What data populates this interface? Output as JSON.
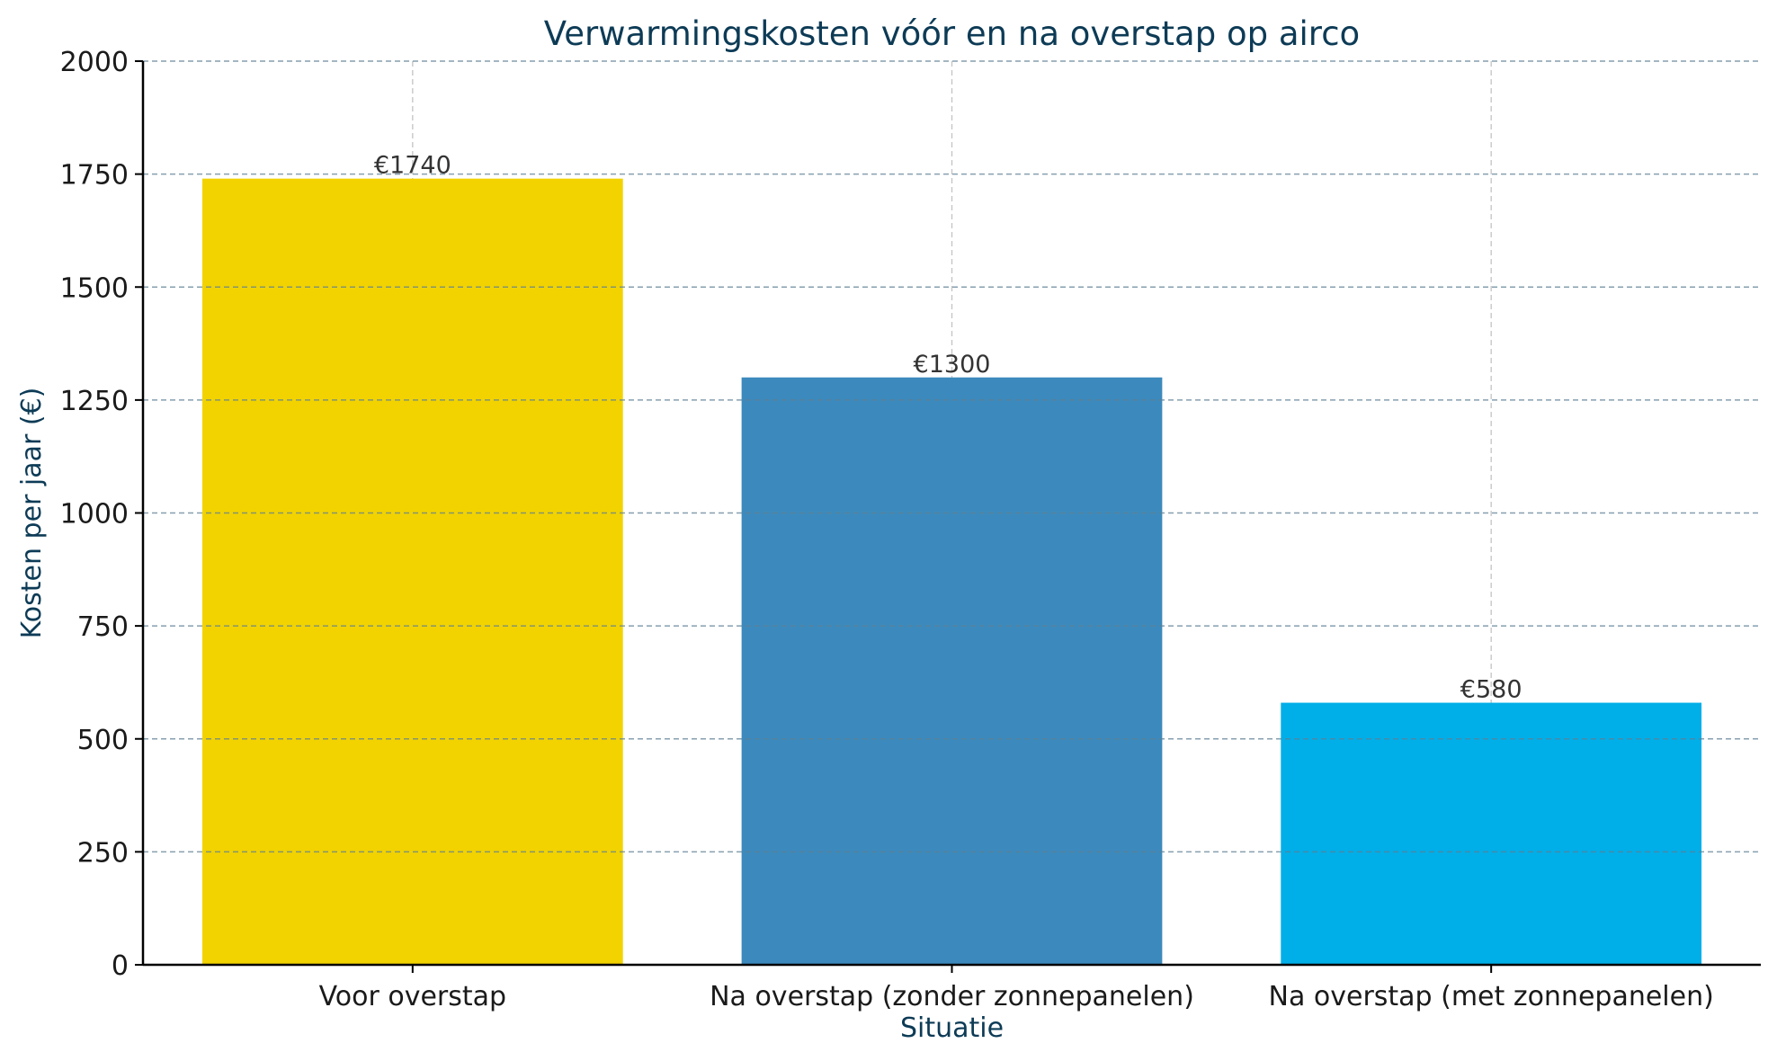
{
  "chart_data": {
    "type": "bar",
    "title": "Verwarmingskosten vóór en na overstap op airco",
    "xlabel": "Situatie",
    "ylabel": "Kosten per jaar (€)",
    "categories": [
      "Voor overstap",
      "Na overstap (zonder zonnepanelen)",
      "Na overstap (met zonnepanelen)"
    ],
    "values": [
      1740,
      1300,
      580
    ],
    "value_labels": [
      "€1740",
      "€1300",
      "€580"
    ],
    "colors": [
      "#f2d300",
      "#3c8abd",
      "#00aee8"
    ],
    "ylim": [
      0,
      2000
    ],
    "yticks": [
      0,
      250,
      500,
      750,
      1000,
      1250,
      1500,
      1750,
      2000
    ],
    "grid": true
  }
}
